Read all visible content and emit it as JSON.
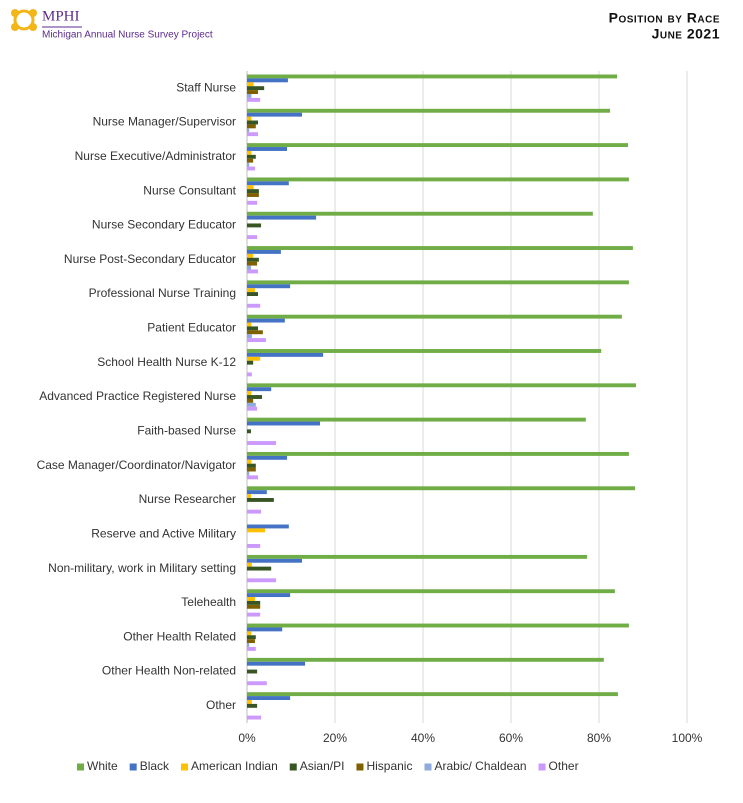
{
  "chart_data": {
    "type": "hbar",
    "logo": "MPHI",
    "logo_subtitle": "Michigan Annual Nurse Survey Project",
    "title": "Position by Race",
    "subtitle": "June 2021",
    "categories": [
      "Staff Nurse",
      "Nurse Manager/Supervisor",
      "Nurse Executive/Administrator",
      "Nurse Consultant",
      "Nurse Secondary Educator",
      "Nurse Post-Secondary Educator",
      "Professional Nurse Training",
      "Patient Educator",
      "School Health Nurse K-12",
      "Advanced Practice Registered Nurse",
      "Faith-based Nurse",
      "Case Manager/Coordinator/Navigator",
      "Nurse Researcher",
      "Reserve and Active Military",
      "Non-military, work in Military setting",
      "Telehealth",
      "Other Health Related",
      "Other Health Non-related",
      "Other"
    ],
    "series": [
      {
        "name": "White",
        "color": "#70ad47",
        "values": [
          84.1,
          82.5,
          86.6,
          86.8,
          78.6,
          87.7,
          86.8,
          85.2,
          80.5,
          88.4,
          77.0,
          86.8,
          88.2,
          0,
          77.3,
          83.6,
          86.8,
          81.1,
          84.3
        ]
      },
      {
        "name": "Black",
        "color": "#4472c4",
        "values": [
          9.3,
          12.5,
          9.1,
          9.5,
          15.7,
          7.7,
          9.8,
          8.6,
          17.3,
          5.5,
          16.6,
          9.1,
          4.5,
          9.5,
          12.5,
          9.8,
          8.0,
          13.2,
          9.8
        ]
      },
      {
        "name": "American Indian",
        "color": "#ffc000",
        "values": [
          1.5,
          1.0,
          1.0,
          1.5,
          0,
          1.4,
          1.8,
          1.0,
          3.0,
          1.0,
          0,
          1.0,
          0.9,
          4.1,
          1.1,
          1.8,
          1.0,
          0,
          1.1
        ]
      },
      {
        "name": "Asian/PI",
        "color": "#375623",
        "values": [
          3.9,
          2.5,
          2.0,
          2.7,
          3.2,
          2.7,
          2.5,
          2.5,
          1.4,
          3.4,
          0.9,
          2.0,
          6.1,
          0,
          5.5,
          3.0,
          2.0,
          2.3,
          2.3
        ]
      },
      {
        "name": "Hispanic",
        "color": "#7f6000",
        "values": [
          2.5,
          2.0,
          1.4,
          2.7,
          0,
          2.3,
          0,
          3.6,
          0,
          1.4,
          0,
          2.0,
          0,
          0,
          0,
          3.0,
          1.8,
          0,
          0
        ]
      },
      {
        "name": "Arabic/ Chaldean",
        "color": "#8faadc",
        "values": [
          1.0,
          0.5,
          0.5,
          0,
          0,
          0.9,
          0,
          1.1,
          0,
          2.0,
          0,
          0.5,
          0,
          0,
          0,
          0,
          0.5,
          0,
          0
        ]
      },
      {
        "name": "Other",
        "color": "#cc99ff",
        "values": [
          3.0,
          2.5,
          1.8,
          2.3,
          2.3,
          2.5,
          3.0,
          4.3,
          1.1,
          2.3,
          6.6,
          2.5,
          3.2,
          3.0,
          6.6,
          3.0,
          2.0,
          4.5,
          3.2
        ]
      }
    ],
    "xlim": [
      0,
      100
    ],
    "xticks": [
      {
        "value": 0,
        "label": "0%"
      },
      {
        "value": 20,
        "label": "20%"
      },
      {
        "value": 40,
        "label": "40%"
      },
      {
        "value": 60,
        "label": "60%"
      },
      {
        "value": 80,
        "label": "80%"
      },
      {
        "value": 100,
        "label": "100%"
      }
    ],
    "grid": true,
    "legend": "bottom"
  }
}
